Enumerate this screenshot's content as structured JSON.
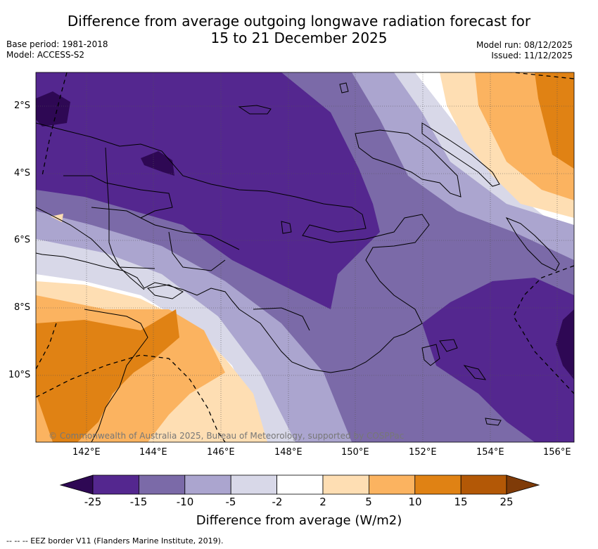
{
  "header": {
    "title_line1": "Difference from average outgoing longwave radiation forecast for",
    "title_line2": "15 to 21 December 2025",
    "base_period": "Base period: 1981-2018",
    "model": "Model: ACCESS-S2",
    "model_run": "Model run: 08/12/2025",
    "issued": "Issued: 11/12/2025"
  },
  "map": {
    "copyright": "© Commonwealth of Australia 2025, Bureau of Meteorology, supported by COSPPac",
    "lat_labels": [
      "2°S",
      "4°S",
      "6°S",
      "8°S",
      "10°S"
    ],
    "lon_labels": [
      "142°E",
      "144°E",
      "146°E",
      "148°E",
      "150°E",
      "152°E",
      "154°E",
      "156°E"
    ]
  },
  "colorbar": {
    "title": "Difference from average (W/m2)",
    "tick_labels": [
      "-25",
      "-15",
      "-10",
      "-5",
      "-2",
      "2",
      "5",
      "10",
      "15",
      "25"
    ],
    "colors": [
      "#2e0854",
      "#54278f",
      "#7b6aa8",
      "#aba5cf",
      "#d8d8e8",
      "#ffffff",
      "#fedeb3",
      "#fbb360",
      "#e08214",
      "#b35806",
      "#7f3b08"
    ]
  },
  "footnote": "--  --  -- EEZ border V11 (Flanders Marine Institute, 2019)."
}
